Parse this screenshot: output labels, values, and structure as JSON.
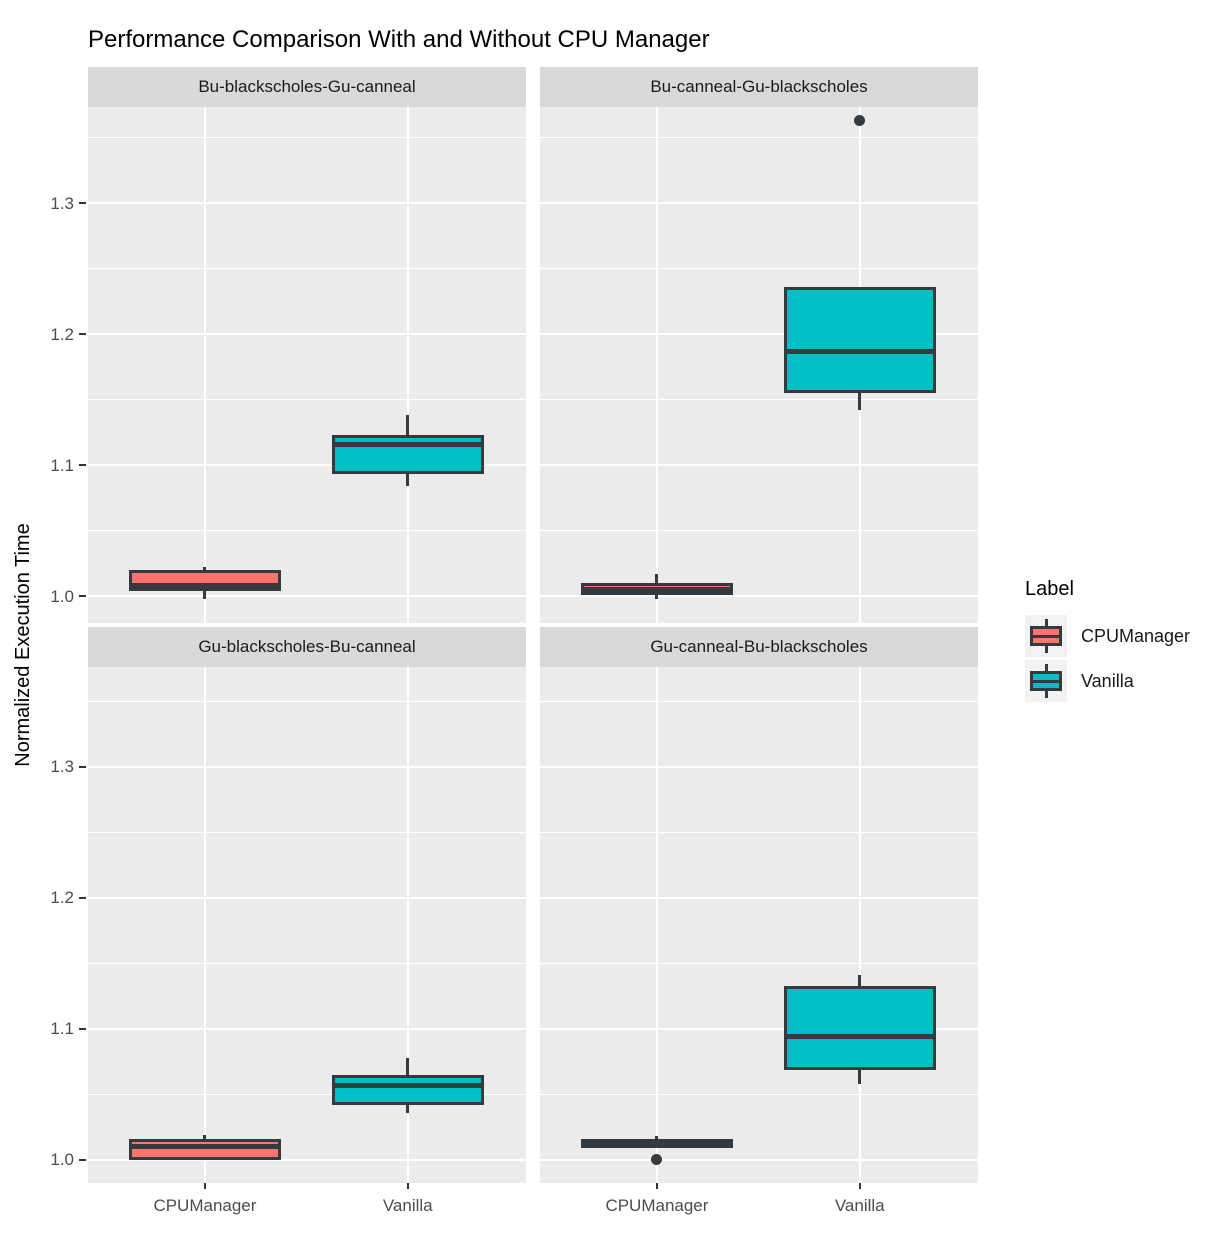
{
  "title": "Performance Comparison With and Without CPU Manager",
  "y_axis": {
    "title": "Normalized Execution Time",
    "tick_labels": [
      "1.0",
      "1.1",
      "1.2",
      "1.3"
    ],
    "tick_values": [
      1.0,
      1.1,
      1.2,
      1.3
    ]
  },
  "x_axis": {
    "categories": [
      "CPUManager",
      "Vanilla"
    ]
  },
  "legend": {
    "title": "Label",
    "items": [
      {
        "label": "CPUManager",
        "color": "#F8766D"
      },
      {
        "label": "Vanilla",
        "color": "#00BFC4"
      }
    ]
  },
  "colors": {
    "cpumanager_fill": "#F8766D",
    "vanilla_fill": "#00BFC4",
    "box_outline": "#353A3E",
    "panel_background": "#EBEBEB",
    "strip_background": "#D9D9D9",
    "gridline": "#FFFFFF",
    "axis_text": "#4D4D4D"
  },
  "chart_data": {
    "type": "boxplot",
    "xlabel": "",
    "ylabel": "Normalized Execution Time",
    "ylim_visible": [
      0.979,
      1.375
    ],
    "grid": "major 0.1 / minor 0.05, white on grey panel",
    "legend_position": "right",
    "categories": [
      "CPUManager",
      "Vanilla"
    ],
    "facets": [
      {
        "label": "Bu-blackscholes-Gu-canneal",
        "boxes": [
          {
            "group": "CPUManager",
            "lo": 0.998,
            "q1": 1.004,
            "med": 1.008,
            "q3": 1.02,
            "hi": 1.022,
            "outliers": []
          },
          {
            "group": "Vanilla",
            "lo": 1.084,
            "q1": 1.093,
            "med": 1.116,
            "q3": 1.123,
            "hi": 1.138,
            "outliers": []
          }
        ]
      },
      {
        "label": "Bu-canneal-Gu-blackscholes",
        "boxes": [
          {
            "group": "CPUManager",
            "lo": 0.998,
            "q1": 1.001,
            "med": 1.005,
            "q3": 1.01,
            "hi": 1.017,
            "outliers": []
          },
          {
            "group": "Vanilla",
            "lo": 1.142,
            "q1": 1.155,
            "med": 1.187,
            "q3": 1.236,
            "hi": 1.236,
            "outliers": [
              1.363
            ]
          }
        ]
      },
      {
        "label": "Gu-blackscholes-Bu-canneal",
        "boxes": [
          {
            "group": "CPUManager",
            "lo": 1.0,
            "q1": 1.0,
            "med": 1.01,
            "q3": 1.016,
            "hi": 1.019,
            "outliers": []
          },
          {
            "group": "Vanilla",
            "lo": 1.036,
            "q1": 1.042,
            "med": 1.057,
            "q3": 1.065,
            "hi": 1.078,
            "outliers": []
          }
        ]
      },
      {
        "label": "Gu-canneal-Bu-blackscholes",
        "boxes": [
          {
            "group": "CPUManager",
            "lo": 1.009,
            "q1": 1.009,
            "med": 1.012,
            "q3": 1.016,
            "hi": 1.018,
            "outliers": [
              1.0
            ]
          },
          {
            "group": "Vanilla",
            "lo": 1.058,
            "q1": 1.069,
            "med": 1.094,
            "q3": 1.133,
            "hi": 1.141,
            "outliers": []
          }
        ]
      }
    ]
  }
}
